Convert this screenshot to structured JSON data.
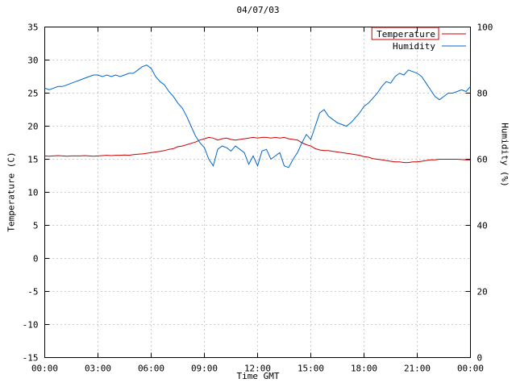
{
  "chart_data": {
    "type": "line",
    "title": "04/07/03",
    "xlabel": "Time GMT",
    "ylabel": "Temperature (C)",
    "y2label": "Humidity (%)",
    "grid": true,
    "legend_position": "top-right-inside",
    "ylim_left": [
      -15,
      35
    ],
    "y_left_ticks": [
      -15,
      -10,
      -5,
      0,
      5,
      10,
      15,
      20,
      25,
      30,
      35
    ],
    "ylim_right": [
      0,
      100
    ],
    "y_right_ticks": [
      0,
      20,
      40,
      60,
      80,
      100
    ],
    "xlim_hours": [
      0,
      24
    ],
    "x_ticks": [
      {
        "hour": 0,
        "label": "00:00"
      },
      {
        "hour": 3,
        "label": "03:00"
      },
      {
        "hour": 6,
        "label": "06:00"
      },
      {
        "hour": 9,
        "label": "09:00"
      },
      {
        "hour": 12,
        "label": "12:00"
      },
      {
        "hour": 15,
        "label": "15:00"
      },
      {
        "hour": 18,
        "label": "18:00"
      },
      {
        "hour": 21,
        "label": "21:00"
      },
      {
        "hour": 24,
        "label": "00:00"
      }
    ],
    "x_interval_hours": 0.25,
    "series": [
      {
        "name": "Temperature",
        "axis": "left",
        "color": "#cc0000",
        "legend_boxed": true,
        "values": [
          15.5,
          15.45,
          15.5,
          15.55,
          15.5,
          15.45,
          15.5,
          15.5,
          15.5,
          15.55,
          15.5,
          15.45,
          15.5,
          15.55,
          15.6,
          15.55,
          15.6,
          15.6,
          15.65,
          15.6,
          15.7,
          15.75,
          15.8,
          15.9,
          16.0,
          16.1,
          16.2,
          16.3,
          16.5,
          16.6,
          16.9,
          17.0,
          17.2,
          17.4,
          17.6,
          17.9,
          18.1,
          18.3,
          18.2,
          17.9,
          18.1,
          18.2,
          18.0,
          17.9,
          18.0,
          18.1,
          18.2,
          18.3,
          18.2,
          18.3,
          18.3,
          18.2,
          18.3,
          18.2,
          18.3,
          18.1,
          18.0,
          17.9,
          17.5,
          17.2,
          17.0,
          16.6,
          16.4,
          16.3,
          16.3,
          16.2,
          16.1,
          16.0,
          15.9,
          15.8,
          15.7,
          15.6,
          15.4,
          15.3,
          15.1,
          15.0,
          14.9,
          14.8,
          14.7,
          14.6,
          14.6,
          14.5,
          14.5,
          14.6,
          14.6,
          14.7,
          14.8,
          14.9,
          14.9,
          15.0,
          15.0,
          15.0,
          15.0,
          15.0,
          14.95,
          14.9,
          14.9
        ]
      },
      {
        "name": "Humidity",
        "axis": "right",
        "color": "#0066cc",
        "legend_boxed": false,
        "values": [
          81.5,
          81.0,
          81.5,
          82.0,
          82.0,
          82.5,
          83.0,
          83.5,
          84.0,
          84.5,
          85.0,
          85.5,
          85.5,
          85.0,
          85.5,
          85.0,
          85.5,
          85.0,
          85.5,
          86.0,
          86.0,
          87.0,
          88.0,
          88.5,
          87.5,
          85.0,
          83.5,
          82.5,
          80.5,
          79.0,
          77.0,
          75.5,
          73.0,
          70.0,
          67.0,
          65.0,
          63.5,
          60.0,
          58.0,
          63.0,
          64.0,
          63.5,
          62.5,
          64.0,
          63.0,
          62.0,
          58.5,
          61.0,
          58.0,
          62.5,
          63.0,
          60.0,
          61.0,
          62.0,
          58.0,
          57.5,
          60.0,
          62.0,
          65.0,
          67.5,
          66.0,
          70.0,
          74.0,
          75.0,
          73.0,
          72.0,
          71.0,
          70.5,
          70.0,
          71.0,
          72.5,
          74.0,
          76.0,
          77.0,
          78.5,
          80.0,
          82.0,
          83.5,
          83.0,
          85.0,
          86.0,
          85.5,
          87.0,
          86.5,
          86.0,
          85.0,
          83.0,
          81.0,
          79.0,
          78.0,
          79.0,
          80.0,
          80.0,
          80.5,
          81.0,
          80.5,
          82.0
        ]
      }
    ]
  },
  "colors": {
    "grid": "#999999",
    "border": "#000000",
    "temperature": "#cc0000",
    "humidity": "#0066cc"
  }
}
